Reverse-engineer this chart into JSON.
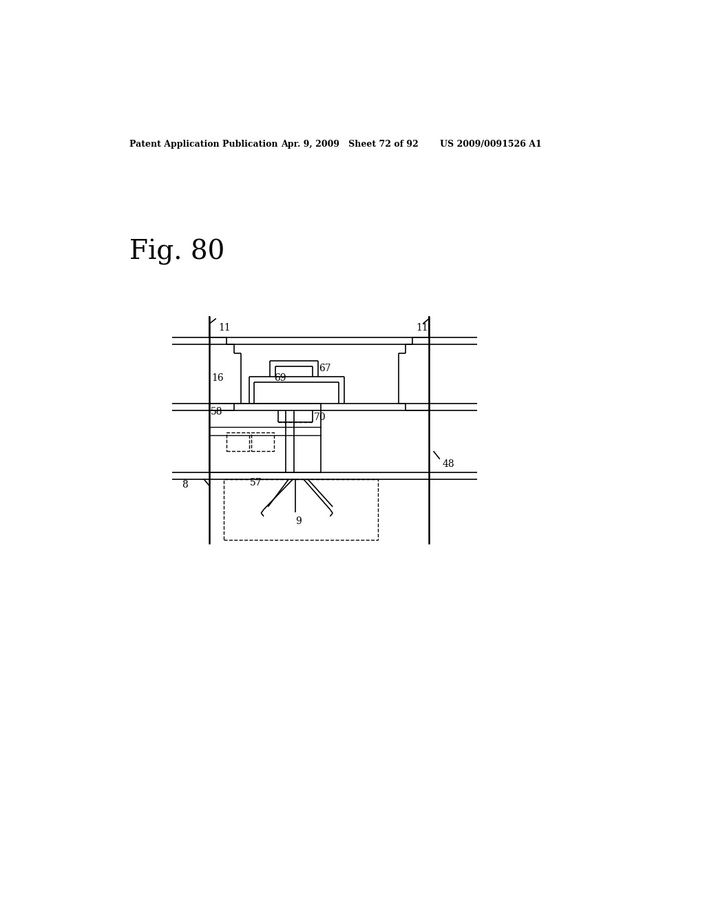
{
  "bg_color": "#ffffff",
  "header_left": "Patent Application Publication",
  "header_mid": "Apr. 9, 2009   Sheet 72 of 92",
  "header_right": "US 2009/0091526 A1",
  "fig_label": "Fig. 80"
}
